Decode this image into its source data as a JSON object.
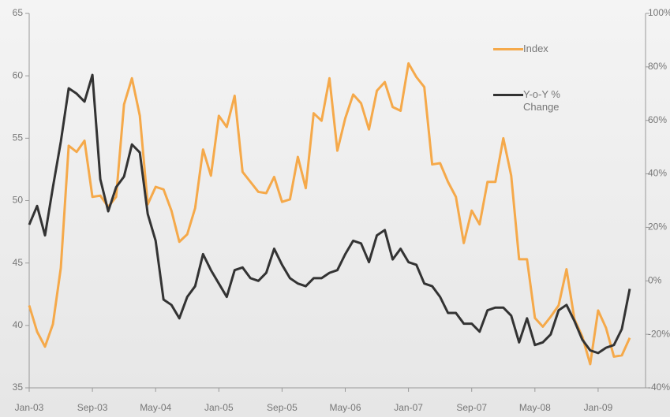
{
  "chart_data": {
    "type": "line",
    "categories": [
      "Jan-03",
      null,
      null,
      null,
      null,
      null,
      null,
      null,
      "Sep-03",
      null,
      null,
      null,
      null,
      null,
      null,
      null,
      "May-04",
      null,
      null,
      null,
      null,
      null,
      null,
      null,
      "Jan-05",
      null,
      null,
      null,
      null,
      null,
      null,
      null,
      "Sep-05",
      null,
      null,
      null,
      null,
      null,
      null,
      null,
      "May-06",
      null,
      null,
      null,
      null,
      null,
      null,
      null,
      "Jan-07",
      null,
      null,
      null,
      null,
      null,
      null,
      null,
      "Sep-07",
      null,
      null,
      null,
      null,
      null,
      null,
      null,
      "May-08",
      null,
      null,
      null,
      null,
      null,
      null,
      null,
      "Jan-09",
      null,
      null,
      null,
      null
    ],
    "series": [
      {
        "name": "Index",
        "color": "#f5a94a",
        "axis": "y",
        "values": [
          41.6,
          39.5,
          38.3,
          40.1,
          44.6,
          54.4,
          53.9,
          54.8,
          50.3,
          50.4,
          49.5,
          50.3,
          57.7,
          59.8,
          56.8,
          49.7,
          51.1,
          50.9,
          49.2,
          46.7,
          47.3,
          49.4,
          54.1,
          52.0,
          56.8,
          55.9,
          58.4,
          52.3,
          51.5,
          50.7,
          50.6,
          51.9,
          49.9,
          50.1,
          53.5,
          51.0,
          57.0,
          56.4,
          59.8,
          54.0,
          56.6,
          58.5,
          57.8,
          55.7,
          58.8,
          59.5,
          57.5,
          57.2,
          61.0,
          59.9,
          59.1,
          52.9,
          53.0,
          51.5,
          50.3,
          46.6,
          49.2,
          48.1,
          51.5,
          51.5,
          55.0,
          52.0,
          45.3,
          45.3,
          40.6,
          39.9,
          40.7,
          41.6,
          44.5,
          40.5,
          39.1,
          36.9,
          41.2,
          39.8,
          37.5,
          37.6,
          39.0
        ]
      },
      {
        "name": "Y-o-Y % Change",
        "color": "#333333",
        "axis": "y2",
        "values": [
          21,
          28,
          17,
          35,
          52,
          72,
          70,
          67,
          77,
          38,
          26,
          35,
          39,
          51,
          48,
          25,
          15,
          -7,
          -9,
          -14,
          -6,
          -2,
          10,
          4,
          -1,
          -6,
          4,
          5,
          1,
          0,
          3,
          12,
          6,
          1,
          -1,
          -2,
          1,
          1,
          3,
          4,
          10,
          15,
          14,
          7,
          17,
          19,
          8,
          12,
          7,
          6,
          -1,
          -2,
          -6,
          -12,
          -12,
          -16,
          -16,
          -19,
          -11,
          -10,
          -10,
          -13,
          -23,
          -14,
          -24,
          -23,
          -20,
          -11,
          -9,
          -15,
          -22,
          -26,
          -27,
          -25,
          -24,
          -18,
          -3
        ]
      }
    ],
    "ylim": [
      35,
      65
    ],
    "yticks": [
      35,
      40,
      45,
      50,
      55,
      60,
      65
    ],
    "y2lim": [
      -40,
      100
    ],
    "y2ticks": [
      {
        "value": -40,
        "label": "-40%"
      },
      {
        "value": -20,
        "label": "-20%"
      },
      {
        "value": 0,
        "label": "0%"
      },
      {
        "value": 20,
        "label": "20%"
      },
      {
        "value": 40,
        "label": "40%"
      },
      {
        "value": 60,
        "label": "60%"
      },
      {
        "value": 80,
        "label": "80%"
      },
      {
        "value": 100,
        "label": "100%"
      }
    ],
    "grid": false,
    "legend": "upper right"
  }
}
